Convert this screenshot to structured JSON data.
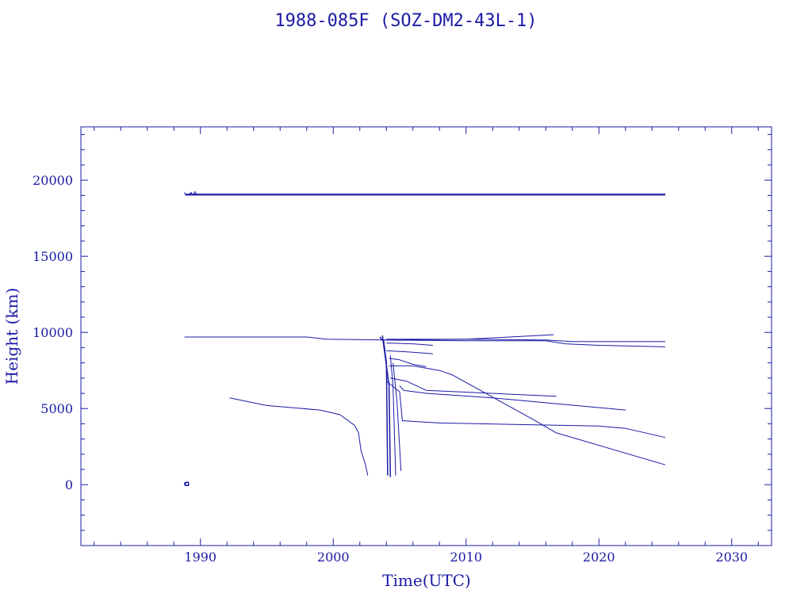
{
  "chart_data": {
    "type": "line",
    "title": "1988-085F (SOZ-DM2-43L-1)",
    "xlabel": "Time(UTC)",
    "ylabel": "Height (km)",
    "xlim": [
      1981,
      2033
    ],
    "ylim": [
      -4000,
      23500
    ],
    "x_ticks": [
      1990,
      2000,
      2010,
      2020,
      2030
    ],
    "y_ticks": [
      0,
      5000,
      10000,
      15000,
      20000
    ],
    "grid": false,
    "legend": "none",
    "color": "#1a1aa6",
    "series": [
      {
        "x": [
          1988.85,
          2025.0
        ],
        "y": [
          19050,
          19050
        ],
        "width": 2.2
      },
      {
        "x": [
          1988.8,
          1988.9
        ],
        "y": [
          19200,
          19000
        ],
        "width": 1
      },
      {
        "x": [
          1989.2,
          1989.3,
          1989.4
        ],
        "y": [
          19100,
          19200,
          19050
        ],
        "width": 1
      },
      {
        "x": [
          1989.5,
          1989.6,
          1989.7
        ],
        "y": [
          19100,
          19250,
          19050
        ],
        "width": 1
      },
      {
        "x": [
          1988.8,
          1988.9,
          1989.1,
          1989.1,
          1988.9,
          1988.8
        ],
        "y": [
          -50,
          150,
          150,
          -50,
          -50,
          150
        ],
        "width": 1.5
      },
      {
        "x": [
          1988.8,
          1998.0,
          1999.5,
          2004.0,
          2010.0,
          2016.6
        ],
        "y": [
          9700,
          9700,
          9550,
          9500,
          9550,
          9850
        ],
        "width": 1
      },
      {
        "x": [
          2003.6,
          2010.0,
          2016.0,
          2017.5,
          2020.0,
          2025.0
        ],
        "y": [
          9500,
          9450,
          9450,
          9250,
          9150,
          9050
        ],
        "width": 1
      },
      {
        "x": [
          2004.0,
          2010.0,
          2016.0,
          2018.0,
          2025.0
        ],
        "y": [
          9550,
          9550,
          9500,
          9400,
          9400
        ],
        "width": 1
      },
      {
        "x": [
          2004.0,
          2006.0,
          2007.5
        ],
        "y": [
          9300,
          9250,
          9150
        ],
        "width": 1
      },
      {
        "x": [
          2004.0,
          2006.0,
          2007.5
        ],
        "y": [
          8800,
          8700,
          8600
        ],
        "width": 1
      },
      {
        "x": [
          2004.2,
          2005.0,
          2006.0,
          2007.0
        ],
        "y": [
          8300,
          8200,
          7900,
          7750
        ],
        "width": 1
      },
      {
        "x": [
          2004.2,
          2006.0,
          2008.0,
          2009.0,
          2015.0,
          2016.8,
          2025.0
        ],
        "y": [
          7800,
          7800,
          7500,
          7200,
          4300,
          3400,
          1300
        ],
        "width": 1
      },
      {
        "x": [
          2004.3,
          2005.5,
          2007.0,
          2016.8
        ],
        "y": [
          7000,
          6800,
          6200,
          5800
        ],
        "width": 1
      },
      {
        "x": [
          2005.0,
          2005.3,
          2007.0,
          2012.0,
          2022.0
        ],
        "y": [
          6500,
          6200,
          6000,
          5700,
          4900
        ],
        "width": 1
      },
      {
        "x": [
          2004.0,
          2005.0,
          2005.2,
          2008.0,
          2020.0,
          2022.0,
          2025.0
        ],
        "y": [
          6800,
          6100,
          4200,
          4050,
          3850,
          3700,
          3100
        ],
        "width": 1
      },
      {
        "x": [
          1992.2,
          1995.0,
          1999.0,
          2000.5,
          2001.6,
          2001.9,
          2002.1,
          2002.4,
          2002.6
        ],
        "y": [
          5700,
          5200,
          4900,
          4600,
          3900,
          3400,
          2200,
          1400,
          600
        ],
        "width": 1
      },
      {
        "x": [
          2003.5,
          2003.8,
          2004.0,
          2004.1
        ],
        "y": [
          9700,
          9400,
          8000,
          600
        ],
        "width": 1.5
      },
      {
        "x": [
          2003.7,
          2003.9,
          2004.2,
          2004.3
        ],
        "y": [
          9800,
          8500,
          6500,
          500
        ],
        "width": 1.5
      },
      {
        "x": [
          2004.3,
          2004.5,
          2004.7
        ],
        "y": [
          8500,
          6500,
          600
        ],
        "width": 1
      },
      {
        "x": [
          2004.5,
          2004.8,
          2005.1
        ],
        "y": [
          8000,
          5500,
          900
        ],
        "width": 1
      }
    ]
  }
}
